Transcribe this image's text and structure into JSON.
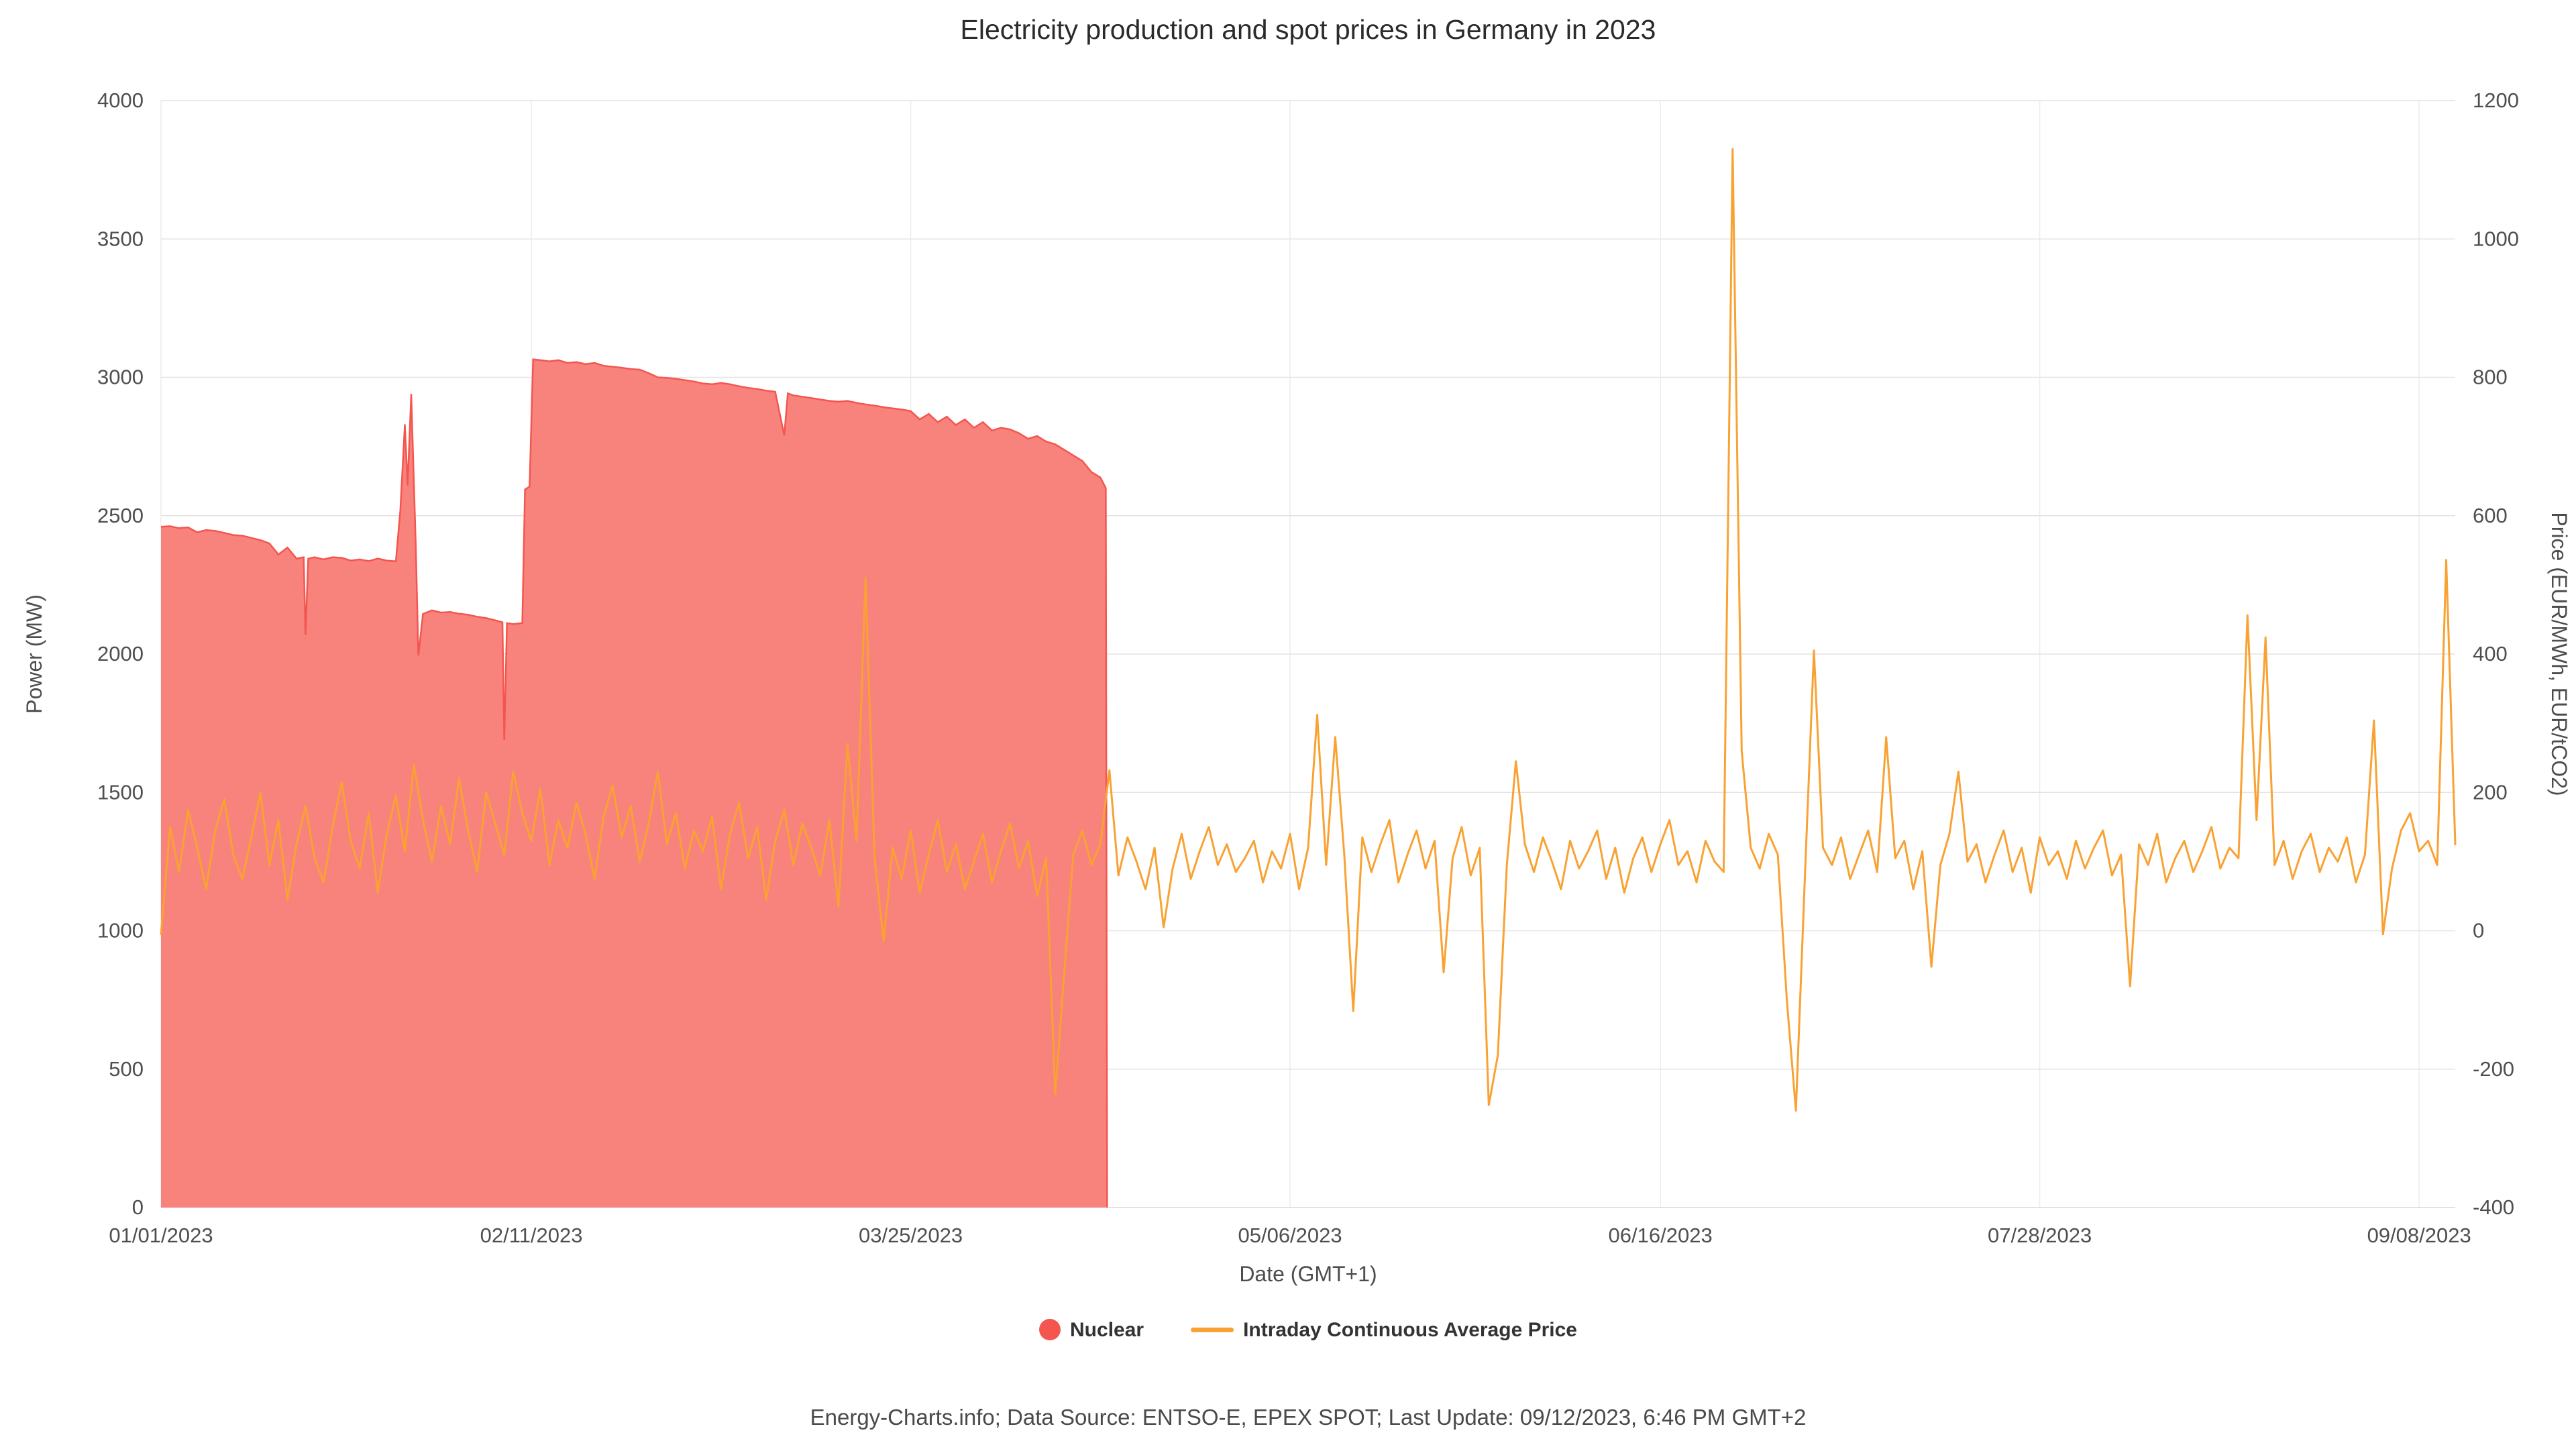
{
  "title": "Electricity production and spot prices in Germany in 2023",
  "footer": "Energy-Charts.info; Data Source: ENTSO-E, EPEX SPOT; Last Update: 09/12/2023, 6:46 PM GMT+2",
  "colors": {
    "nuclear_fill": "#f8827c",
    "nuclear_stroke": "#f4564f",
    "price_line": "#f9a233",
    "grid": "#e3e3e3",
    "text": "#4d4d4d"
  },
  "legend": [
    {
      "label": "Nuclear",
      "icon": "circle",
      "color": "#f4564f"
    },
    {
      "label": "Intraday Continuous Average Price",
      "icon": "line",
      "color": "#f9a233"
    }
  ],
  "chart_data": {
    "type": "line",
    "title": "Electricity production and spot prices in Germany in 2023",
    "xlabel": "Date (GMT+1)",
    "ylabel_left": "Power (MW)",
    "ylabel_right": "Price (EUR/MWh, EUR/tCO2)",
    "x_unit": "days since 01/01/2023",
    "x_max": 254,
    "x_ticks": [
      {
        "day": 0,
        "label": "01/01/2023"
      },
      {
        "day": 41,
        "label": "02/11/2023"
      },
      {
        "day": 83,
        "label": "03/25/2023"
      },
      {
        "day": 125,
        "label": "05/06/2023"
      },
      {
        "day": 166,
        "label": "06/16/2023"
      },
      {
        "day": 208,
        "label": "07/28/2023"
      },
      {
        "day": 250,
        "label": "09/08/2023"
      }
    ],
    "ylim_left": [
      0,
      4000
    ],
    "yticks_left": [
      0,
      500,
      1000,
      1500,
      2000,
      2500,
      3000,
      3500,
      4000
    ],
    "ylim_right": [
      -400,
      1200
    ],
    "yticks_right": [
      -400,
      -200,
      0,
      200,
      400,
      600,
      800,
      1000,
      1200
    ],
    "grid": true,
    "legend_position": "bottom",
    "series": [
      {
        "name": "Nuclear",
        "axis": "left",
        "style": "area",
        "fill": "#f8827c",
        "stroke": "#f4564f",
        "points": [
          [
            0,
            2460
          ],
          [
            1,
            2462
          ],
          [
            2,
            2455
          ],
          [
            3,
            2458
          ],
          [
            4,
            2440
          ],
          [
            5,
            2448
          ],
          [
            6,
            2445
          ],
          [
            7,
            2438
          ],
          [
            8,
            2430
          ],
          [
            9,
            2428
          ],
          [
            10,
            2420
          ],
          [
            11,
            2412
          ],
          [
            12,
            2400
          ],
          [
            13,
            2360
          ],
          [
            14,
            2385
          ],
          [
            15,
            2345
          ],
          [
            15.8,
            2350
          ],
          [
            16,
            2070
          ],
          [
            16.3,
            2345
          ],
          [
            17,
            2350
          ],
          [
            18,
            2342
          ],
          [
            19,
            2350
          ],
          [
            20,
            2348
          ],
          [
            21,
            2338
          ],
          [
            22,
            2342
          ],
          [
            23,
            2336
          ],
          [
            24,
            2345
          ],
          [
            25,
            2338
          ],
          [
            26,
            2335
          ],
          [
            26.5,
            2520
          ],
          [
            27,
            2830
          ],
          [
            27.3,
            2610
          ],
          [
            27.7,
            2940
          ],
          [
            28.2,
            2400
          ],
          [
            28.5,
            1995
          ],
          [
            29,
            2145
          ],
          [
            30,
            2158
          ],
          [
            31,
            2150
          ],
          [
            32,
            2152
          ],
          [
            33,
            2146
          ],
          [
            34,
            2142
          ],
          [
            35,
            2135
          ],
          [
            36,
            2130
          ],
          [
            37,
            2122
          ],
          [
            37.8,
            2115
          ],
          [
            38,
            1690
          ],
          [
            38.3,
            2112
          ],
          [
            39,
            2108
          ],
          [
            40,
            2112
          ],
          [
            40.3,
            2595
          ],
          [
            40.8,
            2605
          ],
          [
            41.2,
            3065
          ],
          [
            42,
            3062
          ],
          [
            43,
            3058
          ],
          [
            44,
            3062
          ],
          [
            45,
            3052
          ],
          [
            46,
            3055
          ],
          [
            47,
            3048
          ],
          [
            48,
            3052
          ],
          [
            49,
            3042
          ],
          [
            50,
            3038
          ],
          [
            51,
            3035
          ],
          [
            52,
            3030
          ],
          [
            53,
            3028
          ],
          [
            54,
            3015
          ],
          [
            55,
            3000
          ],
          [
            56,
            2998
          ],
          [
            57,
            2995
          ],
          [
            58,
            2990
          ],
          [
            59,
            2985
          ],
          [
            60,
            2978
          ],
          [
            61,
            2975
          ],
          [
            62,
            2980
          ],
          [
            63,
            2975
          ],
          [
            64,
            2968
          ],
          [
            65,
            2962
          ],
          [
            66,
            2958
          ],
          [
            67,
            2952
          ],
          [
            68,
            2948
          ],
          [
            69,
            2790
          ],
          [
            69.4,
            2942
          ],
          [
            70,
            2935
          ],
          [
            71,
            2930
          ],
          [
            72,
            2925
          ],
          [
            73,
            2920
          ],
          [
            74,
            2915
          ],
          [
            75,
            2912
          ],
          [
            76,
            2915
          ],
          [
            77,
            2908
          ],
          [
            78,
            2902
          ],
          [
            79,
            2898
          ],
          [
            80,
            2892
          ],
          [
            81,
            2888
          ],
          [
            82,
            2884
          ],
          [
            83,
            2878
          ],
          [
            84,
            2848
          ],
          [
            85,
            2868
          ],
          [
            86,
            2838
          ],
          [
            87,
            2858
          ],
          [
            88,
            2828
          ],
          [
            89,
            2848
          ],
          [
            90,
            2818
          ],
          [
            91,
            2838
          ],
          [
            92,
            2808
          ],
          [
            93,
            2818
          ],
          [
            94,
            2812
          ],
          [
            95,
            2798
          ],
          [
            96,
            2778
          ],
          [
            97,
            2788
          ],
          [
            98,
            2768
          ],
          [
            99,
            2758
          ],
          [
            100,
            2738
          ],
          [
            101,
            2718
          ],
          [
            102,
            2698
          ],
          [
            103,
            2658
          ],
          [
            104,
            2638
          ],
          [
            104.6,
            2600
          ],
          [
            104.75,
            0
          ]
        ]
      },
      {
        "name": "Intraday Continuous Average Price",
        "axis": "right",
        "style": "line",
        "stroke": "#f9a233",
        "x_start": 0,
        "x_step": 1,
        "values": [
          -5,
          150,
          85,
          175,
          120,
          60,
          145,
          190,
          110,
          75,
          135,
          200,
          95,
          160,
          45,
          125,
          180,
          105,
          70,
          150,
          215,
          130,
          90,
          170,
          55,
          140,
          195,
          115,
          240,
          160,
          100,
          180,
          125,
          220,
          145,
          85,
          200,
          155,
          110,
          230,
          170,
          130,
          205,
          95,
          160,
          120,
          185,
          140,
          75,
          165,
          210,
          135,
          180,
          100,
          155,
          230,
          125,
          170,
          90,
          145,
          115,
          165,
          60,
          140,
          185,
          105,
          150,
          45,
          130,
          175,
          95,
          155,
          120,
          80,
          160,
          35,
          270,
          130,
          510,
          105,
          -15,
          120,
          75,
          145,
          55,
          110,
          160,
          85,
          125,
          60,
          100,
          140,
          70,
          115,
          155,
          90,
          130,
          50,
          105,
          -236,
          -60,
          110,
          145,
          95,
          125,
          232,
          80,
          135,
          100,
          60,
          120,
          5,
          90,
          140,
          75,
          115,
          150,
          95,
          125,
          85,
          105,
          130,
          70,
          115,
          90,
          140,
          60,
          120,
          312,
          95,
          280,
          110,
          -116,
          135,
          85,
          125,
          160,
          70,
          110,
          145,
          90,
          130,
          -60,
          105,
          150,
          80,
          120,
          -252,
          -180,
          95,
          245,
          125,
          85,
          135,
          100,
          60,
          130,
          90,
          115,
          145,
          75,
          120,
          55,
          105,
          135,
          85,
          125,
          160,
          95,
          115,
          70,
          130,
          100,
          85,
          1130,
          260,
          120,
          90,
          140,
          110,
          -100,
          -260,
          80,
          405,
          120,
          95,
          135,
          75,
          110,
          145,
          85,
          280,
          105,
          130,
          60,
          115,
          -52,
          95,
          140,
          230,
          100,
          125,
          70,
          110,
          145,
          85,
          120,
          55,
          135,
          95,
          115,
          75,
          130,
          90,
          120,
          145,
          80,
          110,
          -80,
          125,
          95,
          140,
          70,
          105,
          130,
          85,
          115,
          150,
          90,
          120,
          105,
          456,
          160,
          424,
          95,
          130,
          75,
          115,
          140,
          85,
          120,
          100,
          135,
          70,
          110,
          304,
          -5,
          90,
          145,
          170,
          115,
          130,
          95,
          536,
          125
        ]
      }
    ]
  }
}
